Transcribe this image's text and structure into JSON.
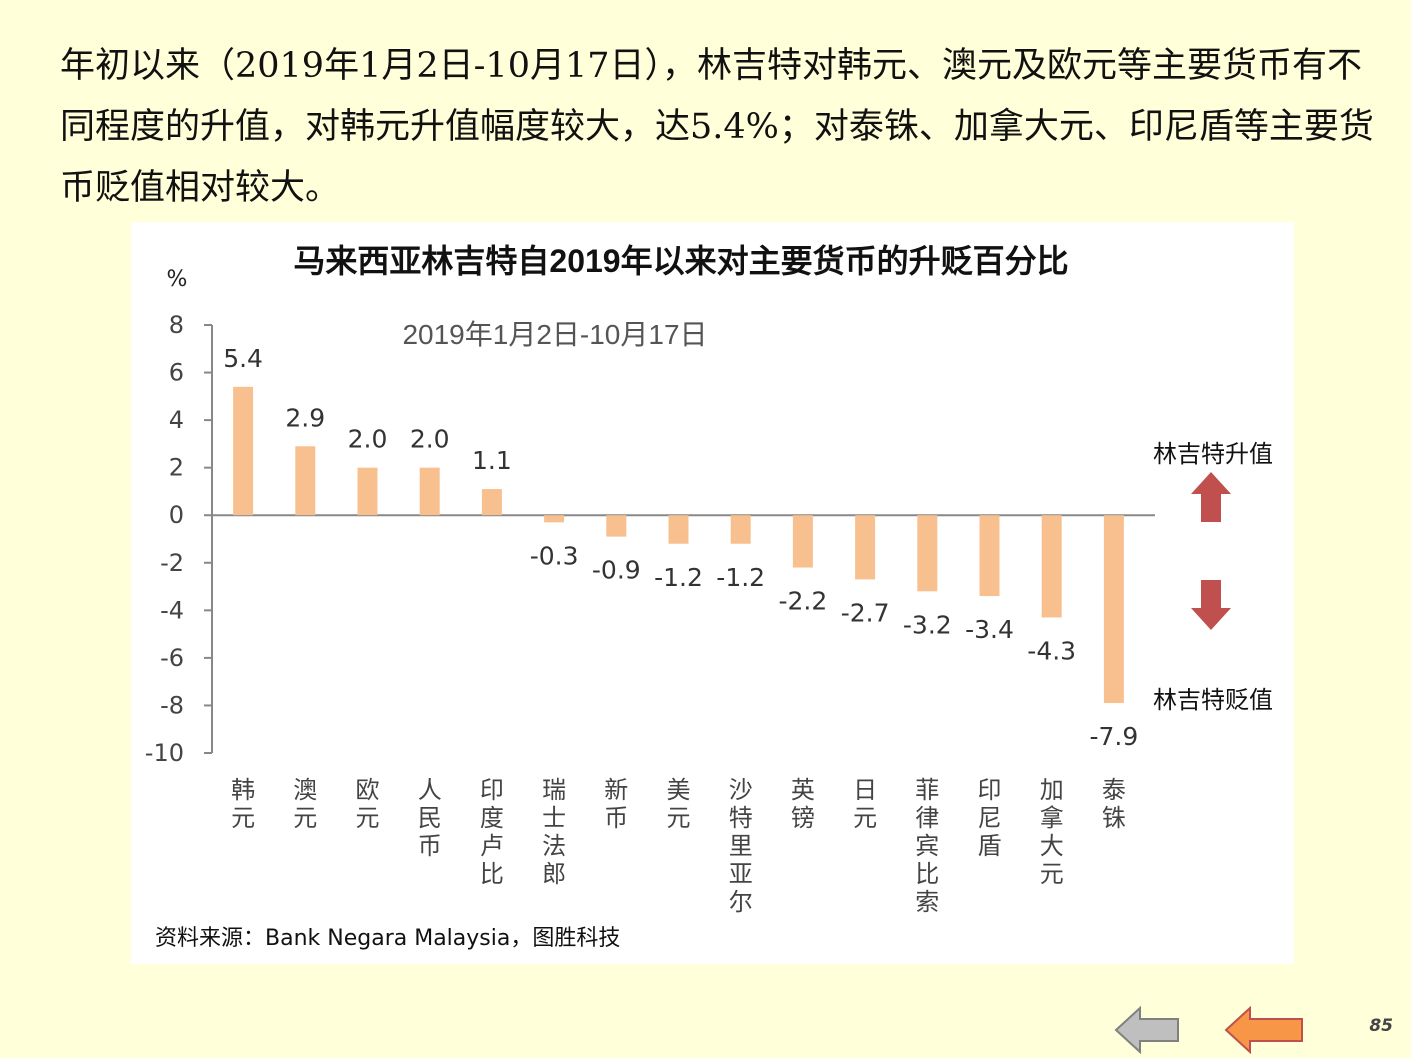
{
  "intro_text": "年初以来（2019年1月2日-10月17日），林吉特对韩元、澳元及欧元等主要货币有不同程度的升值，对韩元升值幅度较大，达5.4%；对泰铢、加拿大元、印尼盾等主要货币贬值相对较大。",
  "source_text": "资料来源：Bank Negara Malaysia，图胜科技",
  "legend": {
    "appreciation": "林吉特升值",
    "depreciation": "林吉特贬值",
    "appreciation_color": "#c0504d",
    "depreciation_color": "#c0504d"
  },
  "page_number": "85",
  "nav": {
    "prev_icon": "gray-left-arrow-icon",
    "next_icon": "orange-left-arrow-icon"
  },
  "chart_data": {
    "type": "bar",
    "title": "马来西亚林吉特自2019年以来对主要货币的升贬百分比",
    "subtitle": "2019年1月2日-10月17日",
    "ylabel": "%",
    "xlabel": "",
    "ylim": [
      -10,
      8
    ],
    "yticks": [
      8,
      6,
      4,
      2,
      0,
      -2,
      -4,
      -6,
      -8,
      -10
    ],
    "grid": false,
    "bar_color": "#f8c08f",
    "categories": [
      "韩元",
      "澳元",
      "欧元",
      "人民币",
      "印度卢比",
      "瑞士法郎",
      "新币",
      "美元",
      "沙特里亚尔",
      "英镑",
      "日元",
      "菲律宾比索",
      "印尼盾",
      "加拿大元",
      "泰铢"
    ],
    "values": [
      5.4,
      2.9,
      2.0,
      2.0,
      1.1,
      -0.3,
      -0.9,
      -1.2,
      -1.2,
      -2.2,
      -2.7,
      -3.2,
      -3.4,
      -4.3,
      -7.9
    ],
    "data_labels": [
      "5.4",
      "2.9",
      "2.0",
      "2.0",
      "1.1",
      "-0.3",
      "-0.9",
      "-1.2",
      "-1.2",
      "-2.2",
      "-2.7",
      "-3.2",
      "-3.4",
      "-4.3",
      "-7.9"
    ]
  }
}
